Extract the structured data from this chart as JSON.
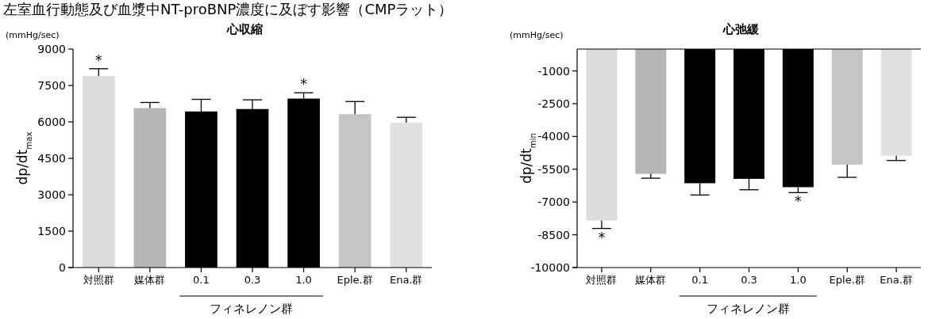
{
  "chart_data": [
    {
      "type": "bar",
      "title": "心収縮",
      "ylabel": "dp/dt$_{max}$",
      "categories": [
        "対照群",
        "媒体群",
        "0.1",
        "0.3",
        "1.0",
        "Eple.群",
        "Ena.群"
      ],
      "values": [
        7890,
        6570,
        6430,
        6530,
        6960,
        6320,
        5970
      ],
      "errors": [
        [
          7890,
          8190
        ],
        [
          6570,
          6800
        ],
        [
          6430,
          6930
        ],
        [
          6530,
          6910
        ],
        [
          6960,
          7200
        ],
        [
          6320,
          6840
        ],
        [
          5970,
          6190
        ]
      ],
      "colors": [
        "#dcdddd",
        "#b4b5b5",
        "#000000",
        "#000000",
        "#000000",
        "#c4c5c5",
        "#e0e1e1"
      ],
      "ylim": [
        0,
        9000
      ],
      "yticks": [
        0,
        1500,
        3000,
        4500,
        6000,
        7500,
        9000
      ],
      "annotations": [
        "(mmHg/sec)",
        "フィネレノン群",
        "左室血行動態及び血漿中NT-proBNP濃度に及ぼす影響（CMPラット）",
        {
          "text": "*",
          "x": "対照群",
          "y": 8190
        },
        {
          "text": "*",
          "x": "1.0",
          "y": 7200
        }
      ]
    },
    {
      "type": "bar",
      "title": "心弛緩",
      "ylabel": "dp/dt$_{min}$",
      "categories": [
        "対照群",
        "媒体群",
        "0.1",
        "0.3",
        "1.0",
        "Eple.群",
        "Ena.群"
      ],
      "values": [
        -7850,
        -5710,
        -6140,
        -5940,
        -6320,
        -5290,
        -4880
      ],
      "errors": [
        [
          -8210,
          -7850
        ],
        [
          -5910,
          -5710
        ],
        [
          -6680,
          -6140
        ],
        [
          -6440,
          -5940
        ],
        [
          -6570,
          -6320
        ],
        [
          -5870,
          -5290
        ],
        [
          -5100,
          -4880
        ]
      ],
      "colors": [
        "#dcdddd",
        "#b4b5b5",
        "#000000",
        "#000000",
        "#000000",
        "#c4c5c5",
        "#e0e1e1"
      ],
      "ylim": [
        -10000,
        0
      ],
      "yticks": [
        -1000,
        -2500,
        -4000,
        -5500,
        -7000,
        -8500,
        -10000
      ],
      "annotations": [
        "(mmHg/sec)",
        "フィネレノン群",
        {
          "text": "*",
          "x": "対照群",
          "y": -8210
        },
        {
          "text": "*",
          "x": "1.0",
          "y": -6570
        }
      ]
    }
  ]
}
